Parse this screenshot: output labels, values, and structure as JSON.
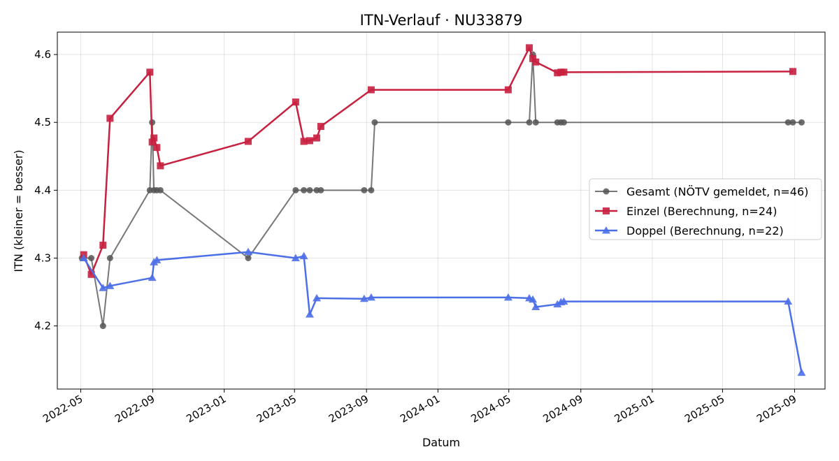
{
  "chart_data": {
    "type": "line",
    "title": "ITN-Verlauf · NU33879",
    "xlabel": "Datum",
    "ylabel": "ITN  (kleiner = besser)",
    "x_is_date": true,
    "xlim": [
      "2022-03-22",
      "2025-10-23"
    ],
    "ylim": [
      4.107,
      4.633
    ],
    "grid": true,
    "legend_position": "center-right",
    "x_ticks": [
      "2022-05-01",
      "2022-09-01",
      "2023-01-01",
      "2023-05-01",
      "2023-09-01",
      "2024-01-01",
      "2024-05-01",
      "2024-09-01",
      "2025-01-01",
      "2025-05-01",
      "2025-09-01"
    ],
    "x_tick_labels": [
      "2022-05",
      "2022-09",
      "2023-01",
      "2023-05",
      "2023-09",
      "2024-01",
      "2024-05",
      "2024-09",
      "2025-01",
      "2025-05",
      "2025-09"
    ],
    "y_ticks": [
      4.2,
      4.3,
      4.4,
      4.5,
      4.6
    ],
    "y_tick_labels": [
      "4.2",
      "4.3",
      "4.4",
      "4.5",
      "4.6"
    ],
    "series": [
      {
        "name": "Gesamt (NÖTV gemeldet, n=46)",
        "color": "#555555",
        "marker": "circle",
        "x": [
          "2022-05-03",
          "2022-05-19",
          "2022-06-08",
          "2022-06-20",
          "2022-08-27",
          "2022-08-31",
          "2022-09-03",
          "2022-09-08",
          "2022-09-14",
          "2023-02-11",
          "2023-05-03",
          "2023-05-17",
          "2023-05-27",
          "2023-06-08",
          "2023-06-15",
          "2023-08-28",
          "2023-09-09",
          "2023-09-15",
          "2024-04-30",
          "2024-06-05",
          "2024-06-11",
          "2024-06-16",
          "2024-07-23",
          "2024-07-29",
          "2024-08-03",
          "2025-08-21",
          "2025-08-29",
          "2025-09-13"
        ],
        "y": [
          4.3,
          4.3,
          4.2,
          4.3,
          4.4,
          4.5,
          4.4,
          4.4,
          4.4,
          4.3,
          4.4,
          4.4,
          4.4,
          4.4,
          4.4,
          4.4,
          4.4,
          4.5,
          4.5,
          4.5,
          4.6,
          4.5,
          4.5,
          4.5,
          4.5,
          4.5,
          4.5,
          4.5
        ]
      },
      {
        "name": "Einzel (Berechnung, n=24)",
        "color": "#c8203f",
        "marker": "square",
        "x": [
          "2022-05-06",
          "2022-05-19",
          "2022-06-08",
          "2022-06-20",
          "2022-08-27",
          "2022-08-31",
          "2022-09-03",
          "2022-09-08",
          "2022-09-14",
          "2023-02-11",
          "2023-05-03",
          "2023-05-17",
          "2023-05-27",
          "2023-06-08",
          "2023-06-15",
          "2023-09-09",
          "2024-04-30",
          "2024-06-05",
          "2024-06-11",
          "2024-06-16",
          "2024-07-23",
          "2024-07-29",
          "2024-08-03",
          "2025-08-29"
        ],
        "y": [
          4.305,
          4.276,
          4.319,
          4.506,
          4.574,
          4.471,
          4.477,
          4.463,
          4.436,
          4.472,
          4.53,
          4.472,
          4.473,
          4.477,
          4.494,
          4.548,
          4.548,
          4.61,
          4.594,
          4.589,
          4.573,
          4.574,
          4.574,
          4.575
        ]
      },
      {
        "name": "Doppel (Berechnung, n=22)",
        "color": "#4c6fe8",
        "marker": "triangle",
        "x": [
          "2022-05-06",
          "2022-06-08",
          "2022-06-20",
          "2022-08-31",
          "2022-09-03",
          "2022-09-08",
          "2023-02-11",
          "2023-05-03",
          "2023-05-17",
          "2023-05-27",
          "2023-06-08",
          "2023-08-28",
          "2023-09-09",
          "2024-04-30",
          "2024-06-05",
          "2024-06-11",
          "2024-06-16",
          "2024-07-23",
          "2024-07-29",
          "2024-08-03",
          "2025-08-21",
          "2025-09-13"
        ],
        "y": [
          4.3,
          4.256,
          4.259,
          4.271,
          4.294,
          4.297,
          4.309,
          4.3,
          4.303,
          4.217,
          4.241,
          4.24,
          4.242,
          4.242,
          4.241,
          4.239,
          4.228,
          4.232,
          4.235,
          4.236,
          4.236,
          4.131
        ]
      }
    ]
  }
}
